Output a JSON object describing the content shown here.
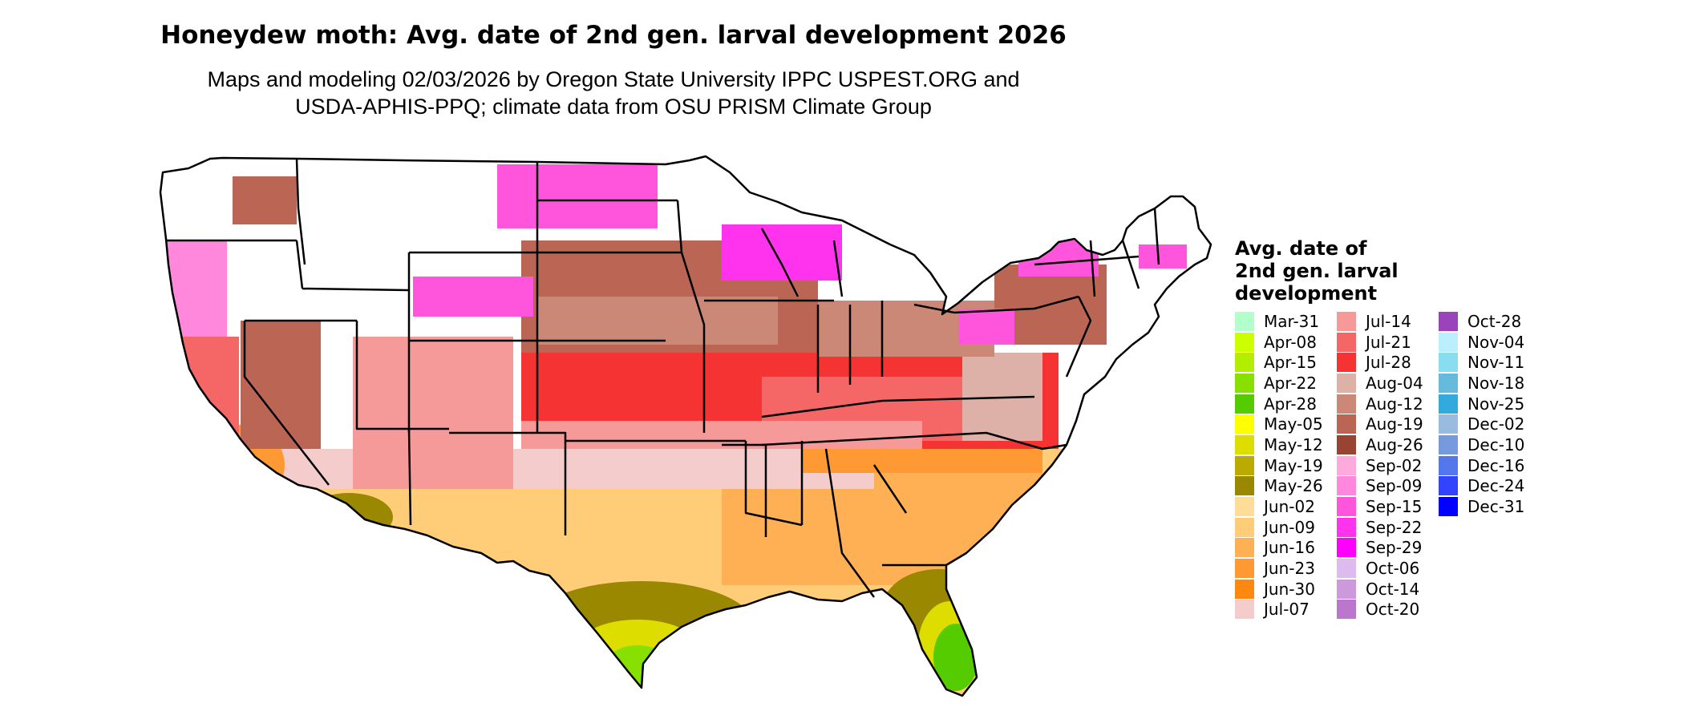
{
  "header": {
    "title": "Honeydew moth: Avg. date of 2nd gen. larval development 2026",
    "subtitle_line1": "Maps and modeling 02/03/2026 by Oregon State University IPPC USPEST.ORG and",
    "subtitle_line2": "USDA-APHIS-PPQ; climate data from OSU PRISM Climate Group"
  },
  "legend": {
    "title_lines": [
      "Avg. date of",
      "2nd gen. larval",
      "development"
    ],
    "columns": [
      [
        {
          "label": "Mar-31",
          "color": "#b3ffcc"
        },
        {
          "label": "Apr-08",
          "color": "#ccff00"
        },
        {
          "label": "Apr-15",
          "color": "#b3ee00"
        },
        {
          "label": "Apr-22",
          "color": "#88e000"
        },
        {
          "label": "Apr-28",
          "color": "#55cc00"
        },
        {
          "label": "May-05",
          "color": "#ffff00"
        },
        {
          "label": "May-12",
          "color": "#dddd00"
        },
        {
          "label": "May-19",
          "color": "#bbaa00"
        },
        {
          "label": "May-26",
          "color": "#998800"
        },
        {
          "label": "Jun-02",
          "color": "#ffdd99"
        },
        {
          "label": "Jun-09",
          "color": "#ffcc77"
        },
        {
          "label": "Jun-16",
          "color": "#ffb055"
        },
        {
          "label": "Jun-23",
          "color": "#ff9933"
        },
        {
          "label": "Jun-30",
          "color": "#ff8811"
        },
        {
          "label": "Jul-07",
          "color": "#f5cccc"
        }
      ],
      [
        {
          "label": "Jul-14",
          "color": "#f59999"
        },
        {
          "label": "Jul-21",
          "color": "#f56666"
        },
        {
          "label": "Jul-28",
          "color": "#f53333"
        },
        {
          "label": "Aug-04",
          "color": "#ddb0a8"
        },
        {
          "label": "Aug-12",
          "color": "#cc8877"
        },
        {
          "label": "Aug-19",
          "color": "#bb6655"
        },
        {
          "label": "Aug-26",
          "color": "#994433"
        },
        {
          "label": "Sep-02",
          "color": "#ffaadd"
        },
        {
          "label": "Sep-09",
          "color": "#ff88dd"
        },
        {
          "label": "Sep-15",
          "color": "#ff55dd"
        },
        {
          "label": "Sep-22",
          "color": "#ff33ee"
        },
        {
          "label": "Sep-29",
          "color": "#ff00ff"
        },
        {
          "label": "Oct-06",
          "color": "#ddbbee"
        },
        {
          "label": "Oct-14",
          "color": "#cc99dd"
        },
        {
          "label": "Oct-20",
          "color": "#bb77cc"
        }
      ],
      [
        {
          "label": "Oct-28",
          "color": "#9944bb"
        },
        {
          "label": "Nov-04",
          "color": "#bbeeff"
        },
        {
          "label": "Nov-11",
          "color": "#88ddee"
        },
        {
          "label": "Nov-18",
          "color": "#66bbdd"
        },
        {
          "label": "Nov-25",
          "color": "#33aadd"
        },
        {
          "label": "Dec-02",
          "color": "#99bbdd"
        },
        {
          "label": "Dec-10",
          "color": "#7799dd"
        },
        {
          "label": "Dec-16",
          "color": "#5577ee"
        },
        {
          "label": "Dec-24",
          "color": "#3344ff"
        },
        {
          "label": "Dec-31",
          "color": "#0000ff"
        }
      ]
    ]
  }
}
